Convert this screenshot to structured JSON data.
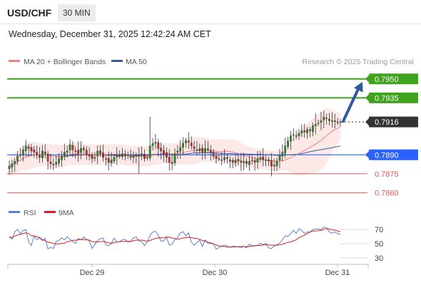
{
  "header": {
    "symbol": "USD/CHF",
    "timeframe": "30 MIN",
    "datetime": "Wednesday, December 31, 2025 12:42:24 AM CET"
  },
  "legend": {
    "ma20_label": "MA 20 + Bollinger Bands",
    "ma50_label": "MA 50",
    "copyright": "Research © 2025 Trading Central",
    "rsi_label": "RSI",
    "rsi_ma_label": "9MA"
  },
  "colors": {
    "green_level": "#3fa31e",
    "blue_level": "#2962ff",
    "red_level": "#e05a5a",
    "current_price": "#333333",
    "ma20": "#f08080",
    "ma50": "#3a5a9a",
    "bollinger_fill": "#fde4e4",
    "candle_up": "#2e8b1f",
    "candle_down": "#c62828",
    "arrow": "#2f5c9e",
    "rsi_line": "#5b7fd6",
    "rsi_ma_line": "#d92020"
  },
  "chart_data": [
    {
      "type": "candlestick",
      "ylim": [
        0.7853,
        0.796
      ],
      "x_labels": [
        "Dec 29",
        "Dec 30",
        "Dec 31"
      ],
      "levels": [
        {
          "value": 0.795,
          "label": "0.7950",
          "kind": "resistance"
        },
        {
          "value": 0.7935,
          "label": "0.7935",
          "kind": "resistance"
        },
        {
          "value": 0.7916,
          "label": "0.7916",
          "kind": "current"
        },
        {
          "value": 0.789,
          "label": "0.7890",
          "kind": "pivot"
        },
        {
          "value": 0.7875,
          "label": "0.7875",
          "kind": "support"
        },
        {
          "value": 0.786,
          "label": "0.7860",
          "kind": "support"
        }
      ],
      "close": [
        0.7881,
        0.7883,
        0.7885,
        0.7889,
        0.789,
        0.7894,
        0.7897,
        0.7895,
        0.7893,
        0.7892,
        0.789,
        0.7888,
        0.7893,
        0.7891,
        0.7885,
        0.7883,
        0.7882,
        0.7884,
        0.7887,
        0.7889,
        0.7892,
        0.7893,
        0.7898,
        0.7894,
        0.7893,
        0.7891,
        0.7895,
        0.7894,
        0.789,
        0.7889,
        0.7887,
        0.7888,
        0.7893,
        0.7891,
        0.7888,
        0.7887,
        0.7884,
        0.7886,
        0.7888,
        0.789,
        0.7889,
        0.7891,
        0.7889,
        0.789,
        0.7888,
        0.789,
        0.7889,
        0.789,
        0.7891,
        0.7887,
        0.7888,
        0.7897,
        0.7899,
        0.79,
        0.7895,
        0.7893,
        0.7891,
        0.7888,
        0.7884,
        0.7883,
        0.7891,
        0.7893,
        0.7896,
        0.7899,
        0.7901,
        0.79,
        0.7897,
        0.7895,
        0.7894,
        0.7895,
        0.7892,
        0.7895,
        0.7894,
        0.7892,
        0.7889,
        0.7887,
        0.7887,
        0.7886,
        0.7888,
        0.7887,
        0.7885,
        0.7884,
        0.7886,
        0.7885,
        0.7884,
        0.7885,
        0.7883,
        0.7885,
        0.7886,
        0.7884,
        0.7887,
        0.7888,
        0.7886,
        0.7886,
        0.7885,
        0.7881,
        0.7882,
        0.7885,
        0.7889,
        0.7892,
        0.7897,
        0.7901,
        0.7905,
        0.7906,
        0.7905,
        0.7907,
        0.7909,
        0.7908,
        0.791,
        0.7909,
        0.7913,
        0.7914,
        0.7915,
        0.7917,
        0.792,
        0.7919,
        0.7917,
        0.7917,
        0.7917,
        0.7916,
        0.7916
      ],
      "high": 0.7923,
      "low": 0.7873
    },
    {
      "type": "line",
      "name": "RSI",
      "ylim": [
        20,
        80
      ],
      "y_ticks": [
        70,
        50,
        30
      ],
      "rsi": [
        59.6,
        56.2,
        66.6,
        70.0,
        63.7,
        68.4,
        69.8,
        53.1,
        47.4,
        60.6,
        55.7,
        58.1,
        54.3,
        57.5,
        42.8,
        44.7,
        43.3,
        53.2,
        54.6,
        58.0,
        55.4,
        59.7,
        56.1,
        53.4,
        50.2,
        57.1,
        55.6,
        59.3,
        56.1,
        53.7,
        43.4,
        48.7,
        54.4,
        56.8,
        57.8,
        48.2,
        46.9,
        50.5,
        57.8,
        52.2,
        52.8,
        55.7,
        56.0,
        52.3,
        53.4,
        58.1,
        59.4,
        53.8,
        53.2,
        47.2,
        52.7,
        61.1,
        66.5,
        67.6,
        61.7,
        53.6,
        53.8,
        58.7,
        48.0,
        49.2,
        55.4,
        58.3,
        65.1,
        66.7,
        60.8,
        65.1,
        52.1,
        47.6,
        51.5,
        55.0,
        46.1,
        55.2,
        50.4,
        50.2,
        49.6,
        42.3,
        44.5,
        46.6,
        48.0,
        46.9,
        45.1,
        46.4,
        46.3,
        45.7,
        44.4,
        46.1,
        44.3,
        49.2,
        47.3,
        47.4,
        47.8,
        50.6,
        48.6,
        50.7,
        44.0,
        43.1,
        46.9,
        48.5,
        50.6,
        55.6,
        61.1,
        60.1,
        64.2,
        68.8,
        64.1,
        71.0,
        68.6,
        64.1,
        66.5,
        66.3,
        69.9,
        70.2,
        70.6,
        69.7,
        73.2,
        72.3,
        66.5,
        64.7,
        66.4,
        64.0,
        63.4
      ],
      "rsi_ma": [
        59.6,
        58.3,
        60.6,
        62.1,
        62.8,
        64.1,
        65.2,
        64.1,
        61.2,
        60.7,
        59.9,
        58.5,
        55.8,
        54.1,
        52.2,
        51.5,
        50.2,
        49.7,
        49.6,
        50.3,
        50.5,
        52.8,
        53.7,
        54.7,
        54.7,
        55.9,
        55.7,
        55.7,
        55.6,
        55.0,
        53.1,
        52.4,
        52.5,
        52.9,
        53.3,
        52.4,
        51.1,
        50.2,
        51.6,
        52.5,
        52.6,
        53.1,
        53.3,
        53.4,
        53.2,
        54.0,
        55.0,
        55.0,
        55.0,
        54.2,
        53.4,
        54.4,
        56.1,
        57.4,
        58.2,
        58.1,
        58.1,
        59.5,
        59.0,
        58.0,
        57.3,
        55.9,
        56.8,
        58.1,
        58.5,
        59.0,
        58.4,
        57.8,
        57.3,
        56.3,
        54.4,
        53.6,
        52.0,
        51.1,
        49.9,
        48.1,
        47.0,
        46.1,
        46.0,
        45.2,
        45.2,
        45.3,
        45.5,
        45.8,
        46.1,
        46.1,
        45.6,
        46.0,
        46.5,
        47.0,
        47.4,
        47.6,
        48.1,
        48.5,
        48.3,
        48.0,
        47.8,
        47.9,
        48.2,
        49.1,
        50.5,
        51.8,
        52.5,
        54.0,
        55.4,
        58.3,
        60.3,
        62.0,
        64.1,
        66.4,
        67.7,
        67.9,
        68.2,
        68.7,
        70.2,
        71.1,
        70.6,
        69.7,
        69.0,
        67.8,
        67.0
      ]
    }
  ]
}
